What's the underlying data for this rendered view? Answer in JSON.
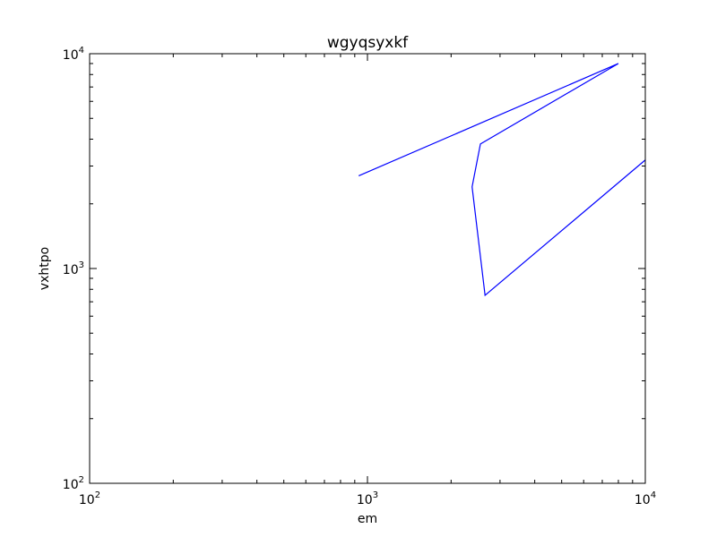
{
  "chart_data": {
    "type": "line",
    "title": "wgyqsyxkf",
    "xlabel": "em",
    "ylabel": "vxhtpo",
    "xscale": "log",
    "yscale": "log",
    "xlim": [
      100,
      10000
    ],
    "ylim": [
      100,
      10000
    ],
    "grid": false,
    "x_ticks": [
      {
        "base": "10",
        "exp": "2",
        "value": 100
      },
      {
        "base": "10",
        "exp": "3",
        "value": 1000
      },
      {
        "base": "10",
        "exp": "4",
        "value": 10000
      }
    ],
    "y_ticks": [
      {
        "base": "10",
        "exp": "2",
        "value": 100
      },
      {
        "base": "10",
        "exp": "3",
        "value": 1000
      },
      {
        "base": "10",
        "exp": "4",
        "value": 10000
      }
    ],
    "series": [
      {
        "color": "#0000ff",
        "x": [
          930,
          8000,
          2550,
          2380,
          2650,
          10000
        ],
        "y": [
          2700,
          9000,
          3800,
          2400,
          750,
          3200
        ]
      }
    ]
  }
}
